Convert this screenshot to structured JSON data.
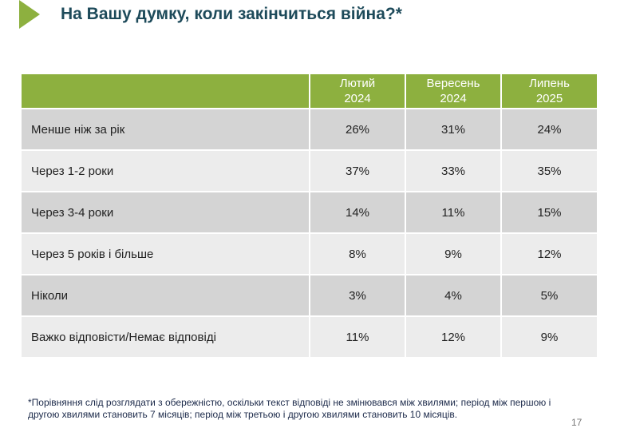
{
  "header": {
    "title": "На Вашу думку, коли закінчиться війна?*"
  },
  "table": {
    "columns": [
      [
        "Лютий",
        "2024"
      ],
      [
        "Вересень",
        "2024"
      ],
      [
        "Липень",
        "2025"
      ]
    ],
    "rows": [
      [
        "Менше ніж за рік",
        "26%",
        "31%",
        "24%"
      ],
      [
        "Через 1-2 роки",
        "37%",
        "33%",
        "35%"
      ],
      [
        "Через 3-4 роки",
        "14%",
        "11%",
        "15%"
      ],
      [
        "Через 5 років і більше",
        "8%",
        "9%",
        "12%"
      ],
      [
        "Ніколи",
        "3%",
        "4%",
        "5%"
      ],
      [
        "Важко відповісти/Немає відповіді",
        "11%",
        "12%",
        "9%"
      ]
    ]
  },
  "footnote": "*Порівняння слід розглядати з обережністю, оскільки текст відповіді не змінювався між хвилями; період між першою і другою хвилями становить 7 місяців; період між третьою і другою хвилями становить 10 місяців.",
  "page_number": "17"
}
